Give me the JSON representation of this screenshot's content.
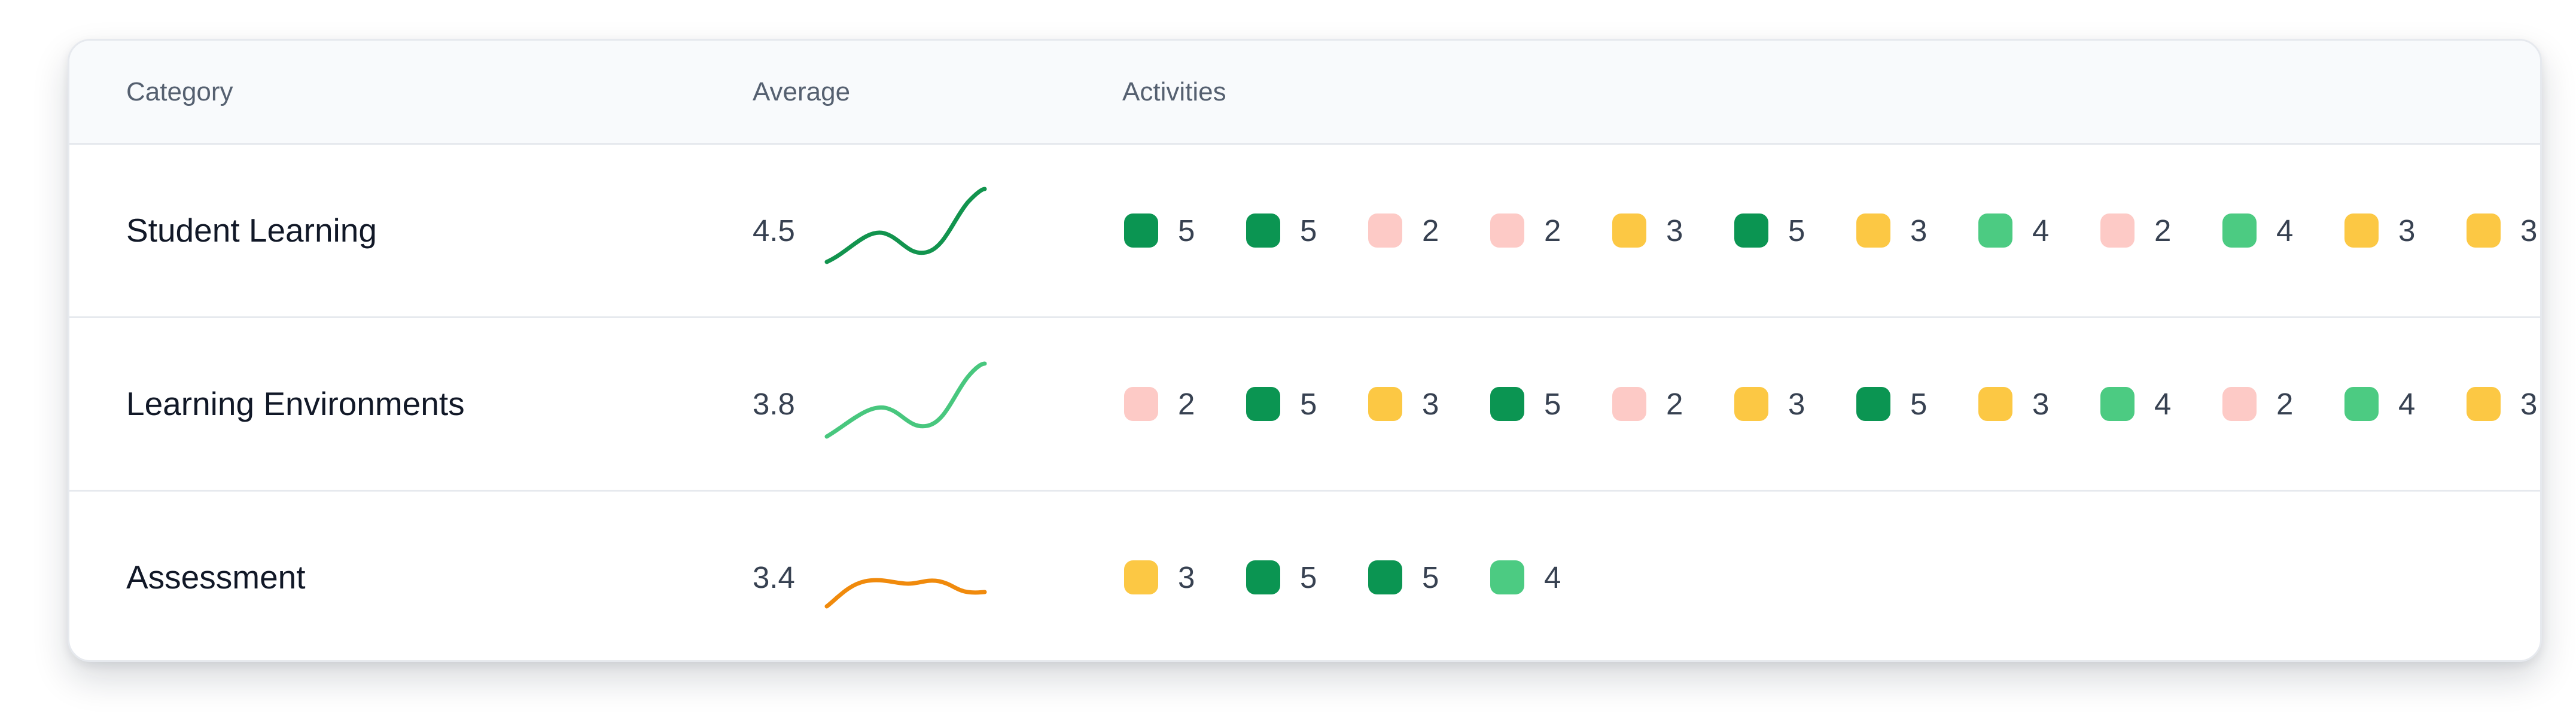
{
  "colors": {
    "score_5": "#0b9552",
    "score_4": "#4ccb82",
    "score_3": "#fcc844",
    "score_2": "#fdcac6",
    "spark_high": "#12944e",
    "spark_mid": "#48c77e",
    "spark_low": "#f08a0c"
  },
  "table": {
    "headers": {
      "category": "Category",
      "average": "Average",
      "activities": "Activities"
    },
    "rows": [
      {
        "category": "Student Learning",
        "average": "4.5",
        "trend_color": "#12944e",
        "activities": [
          "5",
          "5",
          "2",
          "2",
          "3",
          "5",
          "3",
          "4",
          "2",
          "4",
          "3",
          "3"
        ]
      },
      {
        "category": "Learning Environments",
        "average": "3.8",
        "trend_color": "#48c77e",
        "activities": [
          "2",
          "5",
          "3",
          "5",
          "2",
          "3",
          "5",
          "3",
          "4",
          "2",
          "4",
          "3"
        ]
      },
      {
        "category": "Assessment",
        "average": "3.4",
        "trend_color": "#f08a0c",
        "activities": [
          "3",
          "5",
          "5",
          "4"
        ]
      }
    ]
  }
}
